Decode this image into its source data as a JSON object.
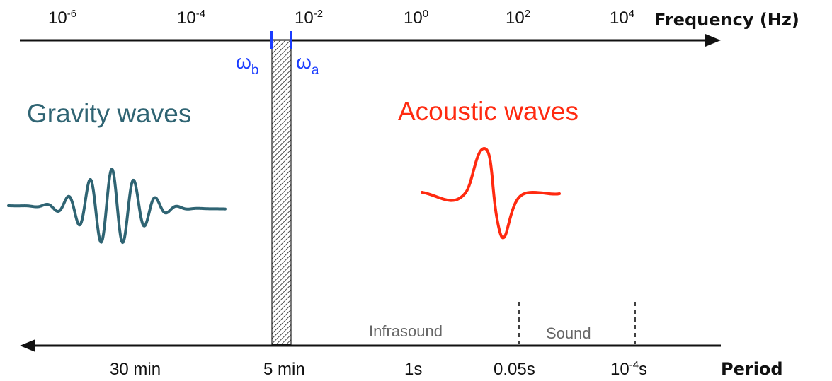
{
  "frequency_axis": {
    "title": "Frequency (Hz)",
    "ticks": [
      {
        "base": "10",
        "exp": "-6"
      },
      {
        "base": "10",
        "exp": "-4"
      },
      {
        "base": "10",
        "exp": "-2"
      },
      {
        "base": "10",
        "exp": "0"
      },
      {
        "base": "10",
        "exp": "2"
      },
      {
        "base": "10",
        "exp": "4"
      }
    ]
  },
  "markers": {
    "omega_b": {
      "symbol": "ω",
      "sub": "b"
    },
    "omega_a": {
      "symbol": "ω",
      "sub": "a"
    }
  },
  "regions": {
    "gravity": "Gravity waves",
    "acoustic": "Acoustic waves",
    "infrasound": "Infrasound",
    "sound": "Sound"
  },
  "period_axis": {
    "title": "Period",
    "ticks": [
      {
        "text": "30 min"
      },
      {
        "text": "5 min"
      },
      {
        "text": "1s"
      },
      {
        "text": "0.05s"
      },
      {
        "base": "10",
        "exp": "-4",
        "unit": "s"
      }
    ]
  },
  "colors": {
    "axis": "#111111",
    "marker": "#1a3cff",
    "gravity": "#2f6473",
    "acoustic": "#ff2a10",
    "muted": "#666666"
  }
}
